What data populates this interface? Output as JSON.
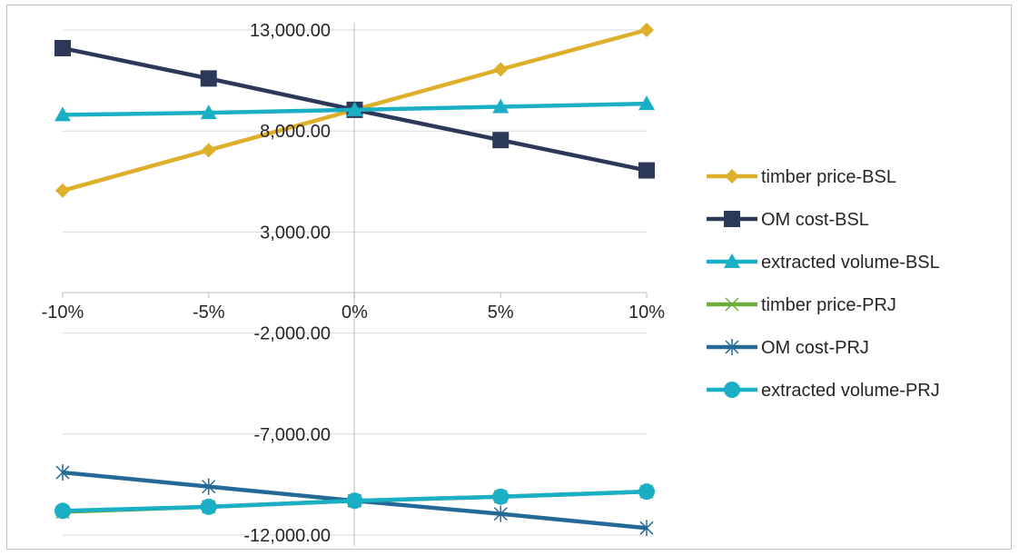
{
  "chart_data": {
    "type": "line",
    "categories": [
      "-10%",
      "-5%",
      "0%",
      "5%",
      "10%"
    ],
    "ylim": [
      -13000,
      13000
    ],
    "yticks": [
      13000,
      8000,
      3000,
      -2000,
      -7000,
      -12000
    ],
    "ytick_labels": [
      "13,000.00",
      "8,000.00",
      "3,000.00",
      "-2,000.00",
      "-7,000.00",
      "-12,000.00"
    ],
    "grid": "horizontal",
    "legend_position": "right",
    "series": [
      {
        "name": "timber price-BSL",
        "color": "#DDAF2A",
        "marker": "diamond",
        "values": [
          5050,
          7050,
          9050,
          11050,
          13000
        ]
      },
      {
        "name": "OM cost-BSL",
        "color": "#2C3858",
        "marker": "square",
        "values": [
          12100,
          10600,
          9050,
          7550,
          6050
        ]
      },
      {
        "name": "extracted volume-BSL",
        "color": "#1AAFC4",
        "marker": "triangle",
        "values": [
          8800,
          8900,
          9050,
          9200,
          9350
        ]
      },
      {
        "name": "timber price-PRJ",
        "color": "#6AAB3A",
        "marker": "x",
        "values": [
          -10850,
          -10600,
          -10300,
          -10100,
          -9850
        ]
      },
      {
        "name": "OM cost-PRJ",
        "color": "#256A96",
        "marker": "star",
        "values": [
          -8900,
          -9600,
          -10300,
          -10950,
          -11650
        ]
      },
      {
        "name": "extracted volume-PRJ",
        "color": "#1AAFC4",
        "marker": "circle",
        "values": [
          -10800,
          -10600,
          -10300,
          -10100,
          -9850
        ]
      }
    ]
  }
}
